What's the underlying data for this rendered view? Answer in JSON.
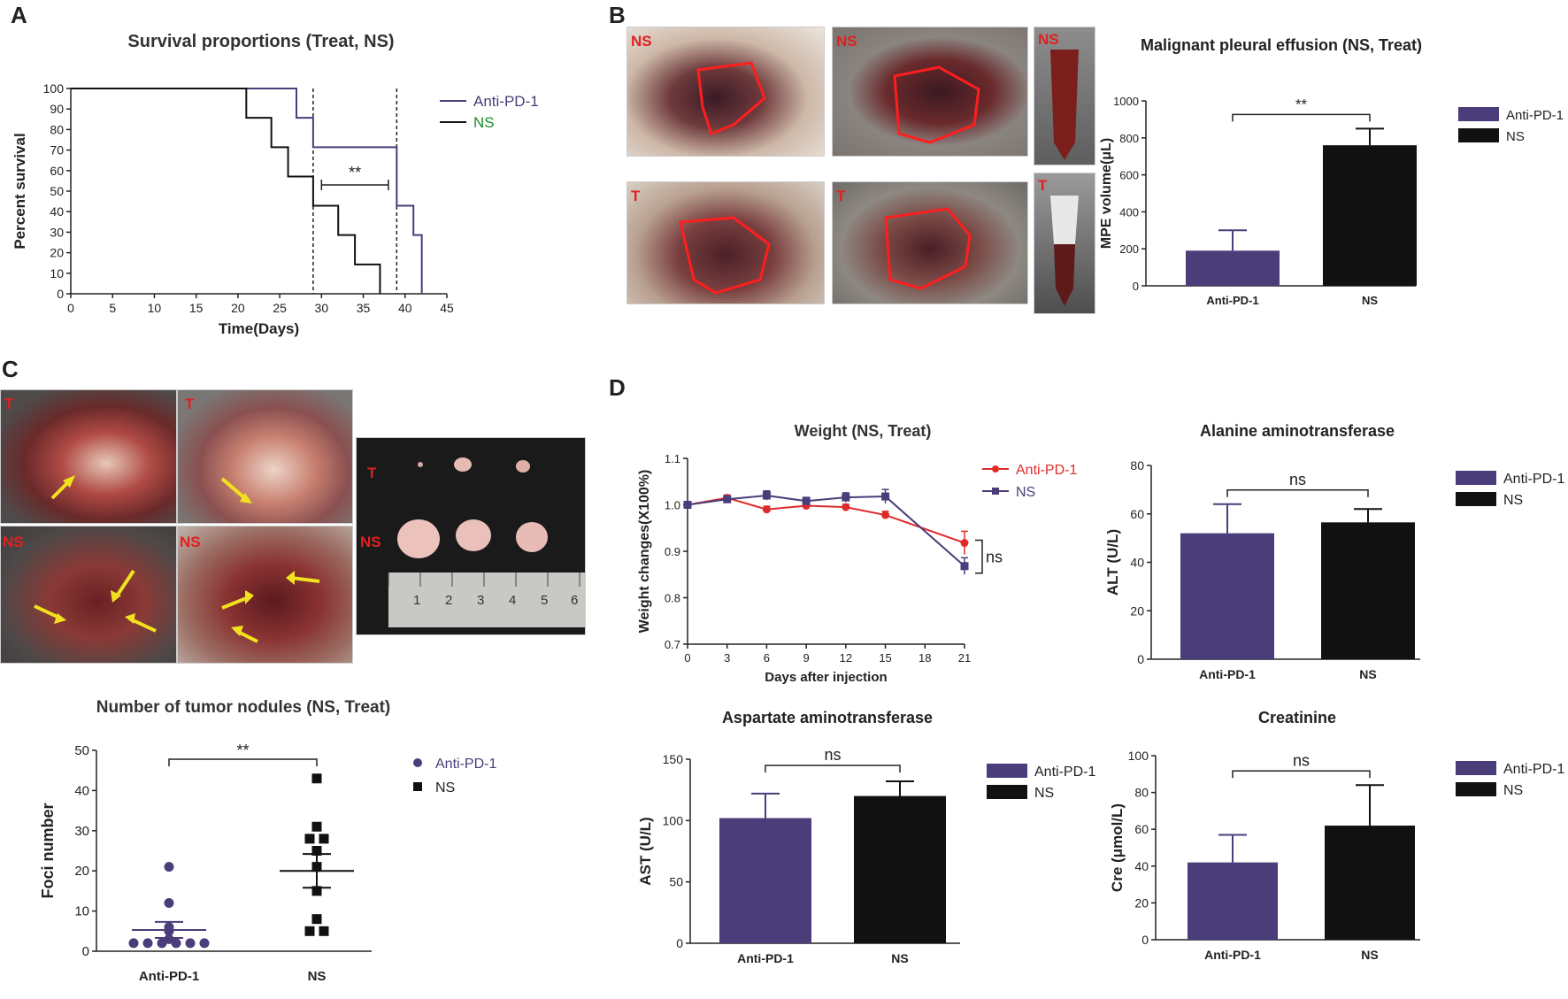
{
  "panels": {
    "A": "A",
    "B": "B",
    "C": "C",
    "D": "D"
  },
  "colors": {
    "anti": "#4a3d7a",
    "ns": "#111111",
    "red": "#e02a2a",
    "green": "#1a8a2a",
    "photo_bg": "#6a3a34",
    "ns_green": "#1a8a2a"
  },
  "photo_tags": {
    "b_tl": "NS",
    "b_tr": "NS",
    "b_tube_top": "NS",
    "b_bl": "T",
    "b_br": "T",
    "b_tube_bottom": "T",
    "c_tl": "T",
    "c_tr": "T",
    "c_bl": "NS",
    "c_br": "NS",
    "c_dish_t": "T",
    "c_dish_ns": "NS",
    "ruler_numbers": [
      "1",
      "2",
      "3",
      "4",
      "5",
      "6"
    ]
  },
  "chart_data": [
    {
      "id": "survival",
      "type": "line",
      "title": "Survival proportions (Treat, NS)",
      "xlabel": "Time(Days)",
      "ylabel": "Percent survival",
      "xlim": [
        0,
        45
      ],
      "ylim": [
        0,
        100
      ],
      "xticks": [
        "0",
        "5",
        "10",
        "15",
        "20",
        "25",
        "30",
        "35",
        "40",
        "45"
      ],
      "yticks": [
        "0",
        "10",
        "20",
        "30",
        "40",
        "50",
        "60",
        "70",
        "80",
        "90",
        "100"
      ],
      "series": [
        {
          "name": "Anti-PD-1",
          "steps": [
            [
              0,
              100
            ],
            [
              27,
              100
            ],
            [
              27,
              85.7
            ],
            [
              29,
              85.7
            ],
            [
              29,
              71.4
            ],
            [
              39,
              71.4
            ],
            [
              39,
              42.9
            ],
            [
              41,
              42.9
            ],
            [
              41,
              28.6
            ],
            [
              42,
              28.6
            ],
            [
              42,
              0
            ]
          ]
        },
        {
          "name": "NS",
          "steps": [
            [
              0,
              100
            ],
            [
              21,
              100
            ],
            [
              21,
              85.7
            ],
            [
              24,
              85.7
            ],
            [
              24,
              71.4
            ],
            [
              26,
              71.4
            ],
            [
              26,
              57.1
            ],
            [
              29,
              57.1
            ],
            [
              29,
              42.9
            ],
            [
              32,
              42.9
            ],
            [
              32,
              28.6
            ],
            [
              34,
              28.6
            ],
            [
              34,
              14.3
            ],
            [
              37,
              14.3
            ],
            [
              37,
              0
            ]
          ]
        }
      ],
      "vlines": [
        29,
        39
      ],
      "annotation": {
        "text": "**",
        "x1": 30,
        "x2": 38,
        "y": 53
      },
      "legend": [
        "Anti-PD-1",
        "NS"
      ]
    },
    {
      "id": "mpe",
      "type": "bar",
      "title": "Malignant pleural effusion (NS, Treat)",
      "ylabel": "MPE volume(μL)",
      "categories": [
        "Anti-PD-1",
        "NS"
      ],
      "values": [
        190,
        760
      ],
      "errors": [
        110,
        90
      ],
      "ylim": [
        0,
        1000
      ],
      "yticks": [
        "0",
        "200",
        "400",
        "600",
        "800",
        "1000"
      ],
      "annotation": "**",
      "legend": [
        "Anti-PD-1",
        "NS"
      ]
    },
    {
      "id": "nodules",
      "type": "scatter",
      "title": "Number of tumor nodules (NS, Treat)",
      "ylabel": "Foci number",
      "categories": [
        "Anti-PD-1",
        "NS"
      ],
      "points": [
        [
          2,
          2,
          2,
          2,
          2,
          2,
          3,
          5,
          6,
          12,
          21
        ],
        [
          5,
          5,
          8,
          15,
          21,
          25,
          28,
          28,
          31,
          43
        ]
      ],
      "means": [
        5.3,
        20
      ],
      "sems": [
        2,
        4.2
      ],
      "ylim": [
        0,
        50
      ],
      "yticks": [
        "0",
        "10",
        "20",
        "30",
        "40",
        "50"
      ],
      "annotation": "**",
      "legend": [
        "Anti-PD-1",
        "NS"
      ]
    },
    {
      "id": "weight",
      "type": "line",
      "title": "Weight (NS, Treat)",
      "xlabel": "Days after injection",
      "ylabel": "Weight changes(X100%)",
      "x": [
        0,
        3,
        6,
        9,
        12,
        15,
        21
      ],
      "xticks": [
        "0",
        "3",
        "6",
        "9",
        "12",
        "15",
        "18",
        "21"
      ],
      "ylim": [
        0.7,
        1.1
      ],
      "yticks": [
        "0.7",
        "0.8",
        "0.9",
        "1.0",
        "1.1"
      ],
      "series": [
        {
          "name": "Anti-PD-1",
          "values": [
            1.0,
            1.015,
            0.99,
            0.998,
            0.995,
            0.978,
            0.918
          ],
          "errors": [
            0.004,
            0.006,
            0.007,
            0.008,
            0.006,
            0.008,
            0.025
          ]
        },
        {
          "name": "NS",
          "values": [
            1.0,
            1.012,
            1.02,
            1.008,
            1.016,
            1.018,
            0.868
          ],
          "errors": [
            0.004,
            0.005,
            0.01,
            0.008,
            0.01,
            0.015,
            0.018
          ]
        }
      ],
      "annotation": "ns",
      "legend": [
        "Anti-PD-1",
        "NS"
      ]
    },
    {
      "id": "alt",
      "type": "bar",
      "title": "Alanine aminotransferase",
      "ylabel": "ALT (U/L)",
      "categories": [
        "Anti-PD-1",
        "NS"
      ],
      "values": [
        52,
        56.5
      ],
      "errors": [
        12,
        5.5
      ],
      "ylim": [
        0,
        80
      ],
      "yticks": [
        "0",
        "20",
        "40",
        "60",
        "80"
      ],
      "annotation": "ns",
      "legend": [
        "Anti-PD-1",
        "NS"
      ]
    },
    {
      "id": "ast",
      "type": "bar",
      "title": "Aspartate aminotransferase",
      "ylabel": "AST (U/L)",
      "categories": [
        "Anti-PD-1",
        "NS"
      ],
      "values": [
        102,
        120
      ],
      "errors": [
        20,
        12
      ],
      "ylim": [
        0,
        150
      ],
      "yticks": [
        "0",
        "50",
        "100",
        "150"
      ],
      "annotation": "ns",
      "legend": [
        "Anti-PD-1",
        "NS"
      ]
    },
    {
      "id": "cre",
      "type": "bar",
      "title": "Creatinine",
      "ylabel": "Cre (μmol/L)",
      "categories": [
        "Anti-PD-1",
        "NS"
      ],
      "values": [
        42,
        62
      ],
      "errors": [
        15,
        22
      ],
      "ylim": [
        0,
        100
      ],
      "yticks": [
        "0",
        "20",
        "40",
        "60",
        "80",
        "100"
      ],
      "annotation": "ns",
      "legend": [
        "Anti-PD-1",
        "NS"
      ]
    }
  ]
}
